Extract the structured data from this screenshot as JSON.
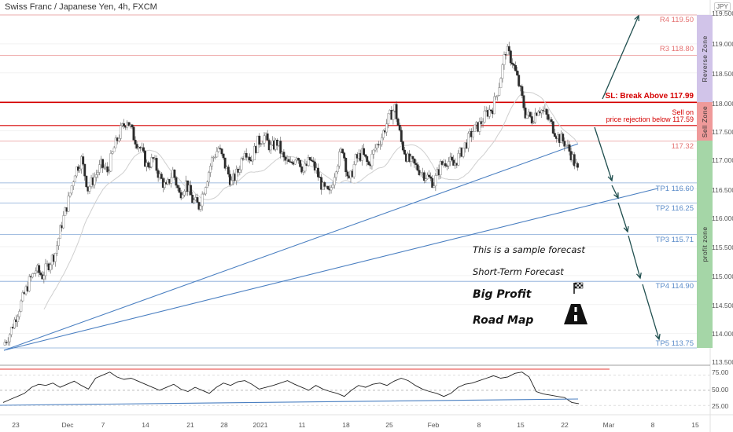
{
  "header": {
    "ticker": "Swiss Franc / Japanese Yen, 4h, FXCM",
    "currency_badge": "JPY"
  },
  "chart_data": {
    "type": "candlestick",
    "symbol": "CHFJPY",
    "timeframe": "4h",
    "ylim": [
      113.45,
      119.8
    ],
    "y_ticks": [
      "119.500",
      "119.000",
      "118.500",
      "118.000",
      "117.500",
      "117.000",
      "116.500",
      "116.000",
      "115.500",
      "115.000",
      "114.500",
      "114.000",
      "113.500"
    ],
    "x_ticks": [
      "23",
      "Dec",
      "7",
      "14",
      "21",
      "28",
      "2021",
      "11",
      "18",
      "25",
      "Feb",
      "8",
      "15",
      "22",
      "Mar",
      "8",
      "15"
    ],
    "price_path": [
      [
        0,
        113.8
      ],
      [
        0.5,
        114.0
      ],
      [
        1,
        114.3
      ],
      [
        1.5,
        114.6
      ],
      [
        2,
        114.9
      ],
      [
        2.5,
        115.1
      ],
      [
        3,
        115.0
      ],
      [
        3.5,
        115.2
      ],
      [
        4,
        115.4
      ],
      [
        4.5,
        115.9
      ],
      [
        5,
        116.3
      ],
      [
        5.5,
        116.8
      ],
      [
        6,
        117.0
      ],
      [
        6.5,
        116.5
      ],
      [
        7,
        116.7
      ],
      [
        7.5,
        116.9
      ],
      [
        8,
        116.8
      ],
      [
        8.5,
        117.2
      ],
      [
        9,
        117.5
      ],
      [
        9.5,
        117.7
      ],
      [
        10,
        117.4
      ],
      [
        10.5,
        117.2
      ],
      [
        11,
        116.9
      ],
      [
        11.5,
        117.0
      ],
      [
        12,
        116.7
      ],
      [
        12.5,
        116.5
      ],
      [
        13,
        116.8
      ],
      [
        13.5,
        116.4
      ],
      [
        14,
        116.6
      ],
      [
        14.5,
        116.3
      ],
      [
        15,
        116.2
      ],
      [
        15.5,
        116.6
      ],
      [
        16,
        117.0
      ],
      [
        16.5,
        117.2
      ],
      [
        17,
        116.9
      ],
      [
        17.5,
        116.6
      ],
      [
        18,
        116.8
      ],
      [
        18.5,
        117.2
      ],
      [
        19,
        117.0
      ],
      [
        19.5,
        117.3
      ],
      [
        20,
        117.4
      ],
      [
        20.5,
        117.2
      ],
      [
        21,
        117.3
      ],
      [
        21.5,
        117.0
      ],
      [
        22,
        116.9
      ],
      [
        22.5,
        117.1
      ],
      [
        23,
        116.8
      ],
      [
        23.5,
        117.0
      ],
      [
        24,
        116.8
      ],
      [
        24.5,
        116.5
      ],
      [
        25,
        116.4
      ],
      [
        25.5,
        116.9
      ],
      [
        26,
        117.2
      ],
      [
        26.5,
        116.6
      ],
      [
        27,
        117.0
      ],
      [
        27.5,
        117.1
      ],
      [
        28,
        116.9
      ],
      [
        28.5,
        117.2
      ],
      [
        29,
        117.4
      ],
      [
        29.5,
        117.7
      ],
      [
        30,
        117.9
      ],
      [
        30.5,
        117.3
      ],
      [
        31,
        117.0
      ],
      [
        31.5,
        116.9
      ],
      [
        32,
        116.8
      ],
      [
        32.5,
        116.7
      ],
      [
        33,
        116.6
      ],
      [
        33.5,
        116.9
      ],
      [
        34,
        117.0
      ],
      [
        34.5,
        116.9
      ],
      [
        35,
        117.1
      ],
      [
        35.5,
        117.3
      ],
      [
        36,
        117.5
      ],
      [
        36.5,
        117.6
      ],
      [
        37,
        117.8
      ],
      [
        37.5,
        117.9
      ],
      [
        38,
        118.3
      ],
      [
        38.5,
        118.9
      ],
      [
        39,
        118.7
      ],
      [
        39.5,
        118.3
      ],
      [
        40,
        117.8
      ],
      [
        40.5,
        117.7
      ],
      [
        41,
        117.9
      ],
      [
        41.5,
        117.8
      ],
      [
        42,
        117.6
      ],
      [
        42.5,
        117.4
      ],
      [
        43,
        117.3
      ],
      [
        43.5,
        117.1
      ],
      [
        44,
        116.8
      ]
    ],
    "levels": [
      {
        "name": "R4",
        "value": 119.5,
        "label": "R4 119.50",
        "color": "#e57373"
      },
      {
        "name": "R3",
        "value": 118.8,
        "label": "R3 118.80",
        "color": "#e57373"
      },
      {
        "name": "SL",
        "value": 117.99,
        "label": "SL: Break Above 117.99",
        "color": "#d50000"
      },
      {
        "name": "Sell",
        "value": 117.59,
        "label_line1": "Sell on",
        "label_line2": "price rejection below 117.59",
        "color": "#d50000"
      },
      {
        "name": "Current",
        "value": 117.32,
        "label": "117.32",
        "color": "#e57373"
      },
      {
        "name": "TP1",
        "value": 116.6,
        "label": "TP1 116.60",
        "color": "#5b8cc9"
      },
      {
        "name": "TP2",
        "value": 116.25,
        "label": "TP2 116.25",
        "color": "#5b8cc9"
      },
      {
        "name": "TP3",
        "value": 115.71,
        "label": "TP3 115.71",
        "color": "#5b8cc9"
      },
      {
        "name": "TP4",
        "value": 114.9,
        "label": "TP4 114.90",
        "color": "#5b8cc9"
      },
      {
        "name": "TP5",
        "value": 113.75,
        "label": "TP5 113.75",
        "color": "#5b8cc9"
      }
    ],
    "zones": [
      {
        "label": "Reverse Zone",
        "from": 117.99,
        "to": 119.5,
        "color": "#d1c4e9"
      },
      {
        "label": "Sell Zone",
        "from": 117.32,
        "to": 117.99,
        "color": "#ef9a9a"
      },
      {
        "label": "profit zone",
        "from": 113.75,
        "to": 117.32,
        "color": "#a5d6a7"
      }
    ],
    "rsi": {
      "y_ticks": [
        "75.00",
        "50.00",
        "25.00"
      ],
      "overbought": 75,
      "oversold": 25,
      "mid": 50,
      "values": [
        30,
        35,
        40,
        45,
        55,
        60,
        58,
        62,
        55,
        60,
        65,
        58,
        52,
        70,
        75,
        80,
        72,
        68,
        70,
        65,
        60,
        55,
        50,
        55,
        60,
        52,
        48,
        55,
        50,
        45,
        55,
        62,
        58,
        64,
        66,
        60,
        52,
        55,
        58,
        62,
        66,
        60,
        55,
        50,
        58,
        52,
        48,
        45,
        40,
        50,
        58,
        55,
        60,
        62,
        58,
        65,
        70,
        66,
        58,
        52,
        48,
        45,
        40,
        45,
        55,
        60,
        62,
        66,
        70,
        74,
        70,
        72,
        78,
        80,
        72,
        48,
        44,
        42,
        40,
        38,
        30,
        28
      ]
    }
  },
  "annotations": {
    "line1": "This is a sample forecast",
    "line2": "Short-Term Forecast",
    "line3": "Big Profit",
    "line4": "Road Map"
  },
  "icons": {
    "flag": "checkered-flag-icon",
    "road": "road-icon"
  }
}
